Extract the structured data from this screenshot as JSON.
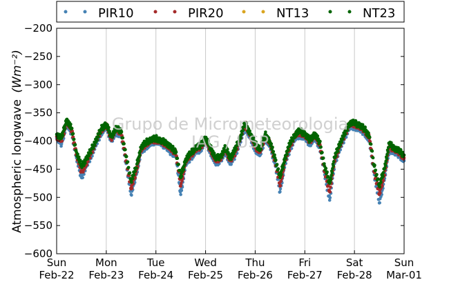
{
  "chart_data": {
    "type": "scatter",
    "title": "",
    "ylabel": "Atmospheric longwave",
    "ylabel_units": "(Wm⁻²)",
    "ylim": [
      -600,
      -200
    ],
    "yticks": [
      -600,
      -550,
      -500,
      -450,
      -400,
      -350,
      -300,
      -250,
      -200
    ],
    "xlim": [
      0,
      7
    ],
    "grid": "vertical-only",
    "legend_position": "top",
    "xticks": [
      {
        "pos": 0,
        "day": "Sun",
        "date": "Feb-22"
      },
      {
        "pos": 1,
        "day": "Mon",
        "date": "Feb-23"
      },
      {
        "pos": 2,
        "day": "Tue",
        "date": "Feb-24"
      },
      {
        "pos": 3,
        "day": "Wed",
        "date": "Feb-25"
      },
      {
        "pos": 4,
        "day": "Thu",
        "date": "Feb-26"
      },
      {
        "pos": 5,
        "day": "Fri",
        "date": "Feb-27"
      },
      {
        "pos": 6,
        "day": "Sat",
        "date": "Feb-28"
      },
      {
        "pos": 7,
        "day": "Sun",
        "date": "Mar-01"
      }
    ],
    "series": [
      {
        "name": "PIR10",
        "color": "#4682b4",
        "points": [
          [
            0.0,
            -395
          ],
          [
            0.1,
            -405
          ],
          [
            0.2,
            -370
          ],
          [
            0.3,
            -385
          ],
          [
            0.4,
            -430
          ],
          [
            0.5,
            -465
          ],
          [
            0.6,
            -445
          ],
          [
            0.7,
            -425
          ],
          [
            0.8,
            -405
          ],
          [
            0.9,
            -385
          ],
          [
            1.0,
            -375
          ],
          [
            1.1,
            -400
          ],
          [
            1.2,
            -385
          ],
          [
            1.3,
            -390
          ],
          [
            1.4,
            -440
          ],
          [
            1.5,
            -495
          ],
          [
            1.6,
            -460
          ],
          [
            1.7,
            -420
          ],
          [
            1.8,
            -410
          ],
          [
            1.9,
            -405
          ],
          [
            2.0,
            -400
          ],
          [
            2.1,
            -405
          ],
          [
            2.2,
            -410
          ],
          [
            2.3,
            -420
          ],
          [
            2.4,
            -425
          ],
          [
            2.5,
            -495
          ],
          [
            2.6,
            -440
          ],
          [
            2.7,
            -430
          ],
          [
            2.8,
            -420
          ],
          [
            2.9,
            -415
          ],
          [
            3.0,
            -400
          ],
          [
            3.1,
            -420
          ],
          [
            3.2,
            -440
          ],
          [
            3.3,
            -435
          ],
          [
            3.4,
            -420
          ],
          [
            3.5,
            -440
          ],
          [
            3.6,
            -425
          ],
          [
            3.7,
            -400
          ],
          [
            3.8,
            -375
          ],
          [
            3.9,
            -395
          ],
          [
            4.0,
            -415
          ],
          [
            4.1,
            -425
          ],
          [
            4.2,
            -395
          ],
          [
            4.3,
            -410
          ],
          [
            4.4,
            -440
          ],
          [
            4.5,
            -490
          ],
          [
            4.6,
            -440
          ],
          [
            4.7,
            -415
          ],
          [
            4.8,
            -395
          ],
          [
            4.9,
            -390
          ],
          [
            5.0,
            -395
          ],
          [
            5.1,
            -405
          ],
          [
            5.2,
            -395
          ],
          [
            5.3,
            -410
          ],
          [
            5.4,
            -460
          ],
          [
            5.5,
            -505
          ],
          [
            5.6,
            -440
          ],
          [
            5.7,
            -415
          ],
          [
            5.8,
            -395
          ],
          [
            5.9,
            -375
          ],
          [
            6.0,
            -375
          ],
          [
            6.1,
            -380
          ],
          [
            6.2,
            -385
          ],
          [
            6.3,
            -400
          ],
          [
            6.4,
            -460
          ],
          [
            6.5,
            -510
          ],
          [
            6.6,
            -470
          ],
          [
            6.7,
            -415
          ],
          [
            6.8,
            -420
          ],
          [
            6.9,
            -425
          ],
          [
            7.0,
            -435
          ]
        ]
      },
      {
        "name": "PIR20",
        "color": "#a52a2a",
        "points": [
          [
            0.0,
            -392
          ],
          [
            0.1,
            -400
          ],
          [
            0.2,
            -365
          ],
          [
            0.3,
            -380
          ],
          [
            0.4,
            -425
          ],
          [
            0.5,
            -455
          ],
          [
            0.6,
            -440
          ],
          [
            0.7,
            -420
          ],
          [
            0.8,
            -400
          ],
          [
            0.9,
            -380
          ],
          [
            1.0,
            -372
          ],
          [
            1.1,
            -395
          ],
          [
            1.2,
            -380
          ],
          [
            1.3,
            -385
          ],
          [
            1.4,
            -435
          ],
          [
            1.5,
            -485
          ],
          [
            1.6,
            -455
          ],
          [
            1.7,
            -415
          ],
          [
            1.8,
            -405
          ],
          [
            1.9,
            -400
          ],
          [
            2.0,
            -398
          ],
          [
            2.1,
            -402
          ],
          [
            2.2,
            -405
          ],
          [
            2.3,
            -415
          ],
          [
            2.4,
            -420
          ],
          [
            2.5,
            -480
          ],
          [
            2.6,
            -435
          ],
          [
            2.7,
            -425
          ],
          [
            2.8,
            -415
          ],
          [
            2.9,
            -410
          ],
          [
            3.0,
            -398
          ],
          [
            3.1,
            -415
          ],
          [
            3.2,
            -435
          ],
          [
            3.3,
            -430
          ],
          [
            3.4,
            -415
          ],
          [
            3.5,
            -435
          ],
          [
            3.6,
            -420
          ],
          [
            3.7,
            -395
          ],
          [
            3.8,
            -370
          ],
          [
            3.9,
            -390
          ],
          [
            4.0,
            -410
          ],
          [
            4.1,
            -420
          ],
          [
            4.2,
            -390
          ],
          [
            4.3,
            -405
          ],
          [
            4.4,
            -435
          ],
          [
            4.5,
            -480
          ],
          [
            4.6,
            -435
          ],
          [
            4.7,
            -410
          ],
          [
            4.8,
            -390
          ],
          [
            4.9,
            -385
          ],
          [
            5.0,
            -390
          ],
          [
            5.1,
            -400
          ],
          [
            5.2,
            -390
          ],
          [
            5.3,
            -405
          ],
          [
            5.4,
            -455
          ],
          [
            5.5,
            -490
          ],
          [
            5.6,
            -435
          ],
          [
            5.7,
            -410
          ],
          [
            5.8,
            -390
          ],
          [
            5.9,
            -370
          ],
          [
            6.0,
            -370
          ],
          [
            6.1,
            -375
          ],
          [
            6.2,
            -380
          ],
          [
            6.3,
            -395
          ],
          [
            6.4,
            -455
          ],
          [
            6.5,
            -495
          ],
          [
            6.6,
            -460
          ],
          [
            6.7,
            -410
          ],
          [
            6.8,
            -415
          ],
          [
            6.9,
            -420
          ],
          [
            7.0,
            -430
          ]
        ]
      },
      {
        "name": "NT13",
        "color": "#daa520",
        "points": []
      },
      {
        "name": "NT23",
        "color": "#006400",
        "points": [
          [
            0.0,
            -388
          ],
          [
            0.1,
            -395
          ],
          [
            0.2,
            -362
          ],
          [
            0.3,
            -378
          ],
          [
            0.4,
            -420
          ],
          [
            0.5,
            -445
          ],
          [
            0.6,
            -432
          ],
          [
            0.7,
            -415
          ],
          [
            0.8,
            -398
          ],
          [
            0.9,
            -378
          ],
          [
            1.0,
            -370
          ],
          [
            1.1,
            -392
          ],
          [
            1.2,
            -378
          ],
          [
            1.3,
            -382
          ],
          [
            1.4,
            -428
          ],
          [
            1.5,
            -470
          ],
          [
            1.6,
            -448
          ],
          [
            1.7,
            -412
          ],
          [
            1.8,
            -402
          ],
          [
            1.9,
            -398
          ],
          [
            2.0,
            -395
          ],
          [
            2.1,
            -400
          ],
          [
            2.2,
            -402
          ],
          [
            2.3,
            -412
          ],
          [
            2.4,
            -418
          ],
          [
            2.5,
            -465
          ],
          [
            2.6,
            -432
          ],
          [
            2.7,
            -422
          ],
          [
            2.8,
            -412
          ],
          [
            2.9,
            -408
          ],
          [
            3.0,
            -395
          ],
          [
            3.1,
            -412
          ],
          [
            3.2,
            -430
          ],
          [
            3.3,
            -428
          ],
          [
            3.4,
            -412
          ],
          [
            3.5,
            -430
          ],
          [
            3.6,
            -415
          ],
          [
            3.7,
            -392
          ],
          [
            3.8,
            -368
          ],
          [
            3.9,
            -388
          ],
          [
            4.0,
            -405
          ],
          [
            4.1,
            -415
          ],
          [
            4.2,
            -388
          ],
          [
            4.3,
            -402
          ],
          [
            4.4,
            -430
          ],
          [
            4.5,
            -465
          ],
          [
            4.6,
            -430
          ],
          [
            4.7,
            -405
          ],
          [
            4.8,
            -388
          ],
          [
            4.9,
            -382
          ],
          [
            5.0,
            -388
          ],
          [
            5.1,
            -398
          ],
          [
            5.2,
            -388
          ],
          [
            5.3,
            -402
          ],
          [
            5.4,
            -445
          ],
          [
            5.5,
            -475
          ],
          [
            5.6,
            -430
          ],
          [
            5.7,
            -405
          ],
          [
            5.8,
            -388
          ],
          [
            5.9,
            -368
          ],
          [
            6.0,
            -368
          ],
          [
            6.1,
            -372
          ],
          [
            6.2,
            -378
          ],
          [
            6.3,
            -392
          ],
          [
            6.4,
            -445
          ],
          [
            6.5,
            -480
          ],
          [
            6.6,
            -450
          ],
          [
            6.7,
            -405
          ],
          [
            6.8,
            -412
          ],
          [
            6.9,
            -418
          ],
          [
            7.0,
            -425
          ]
        ]
      }
    ],
    "watermark": [
      "Grupo de Micrometeorologia",
      "IAG / USP"
    ]
  }
}
